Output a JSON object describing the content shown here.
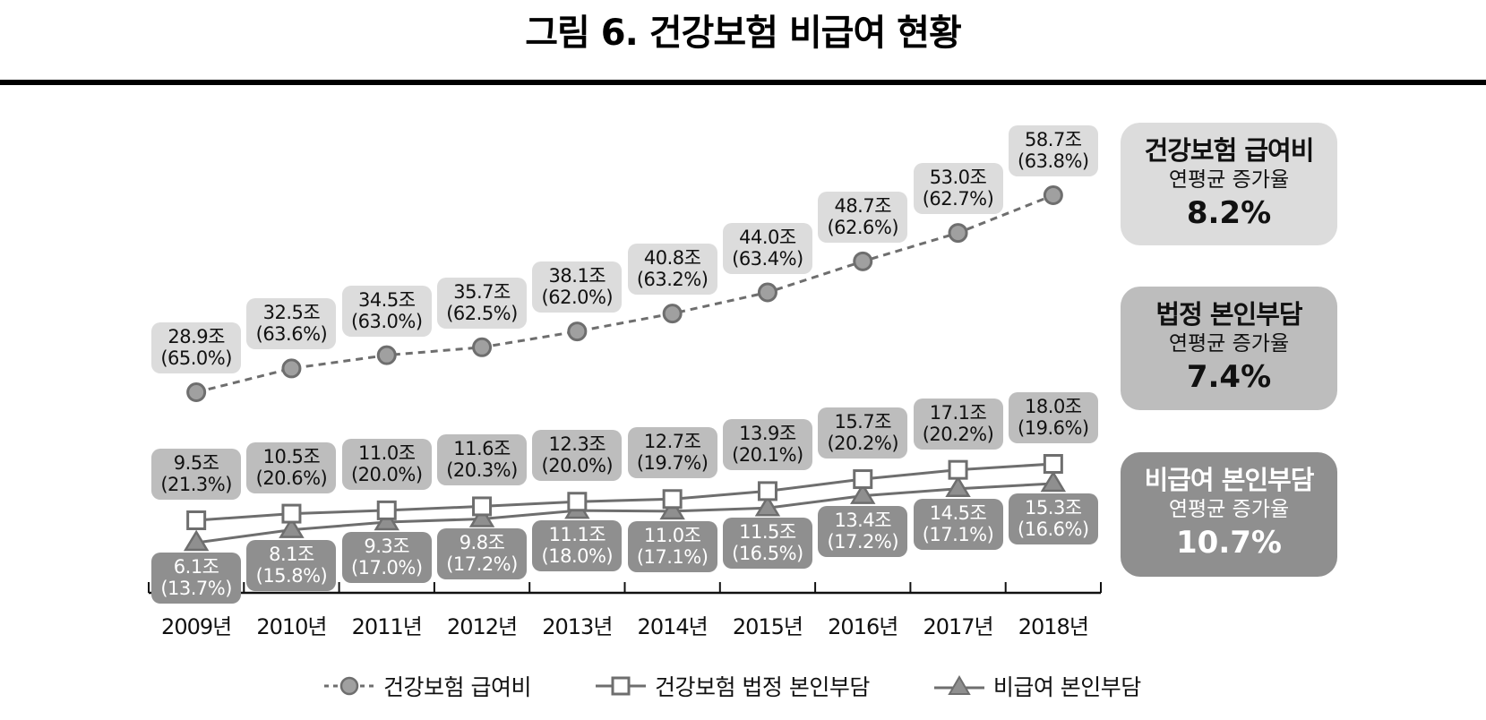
{
  "title": "그림 6. 건강보험 비급여 현황",
  "colors": {
    "series1_fill": "#a0a0a0",
    "series1_line": "#6e6e6e",
    "series2_line": "#6e6e6e",
    "series3_fill": "#8f8f8f",
    "label1_bg": "#dcdcdc",
    "label2_bg": "#bdbdbd",
    "label3_bg": "#8f8f8f",
    "summary1_bg": "#dcdcdc",
    "summary2_bg": "#bdbdbd",
    "summary3_bg": "#8f8f8f"
  },
  "years": [
    "2009년",
    "2010년",
    "2011년",
    "2012년",
    "2013년",
    "2014년",
    "2015년",
    "2016년",
    "2017년",
    "2018년"
  ],
  "series": [
    {
      "name": "건강보험 급여비",
      "marker": "circle",
      "line": "dashed",
      "labels": [
        {
          "value": "28.9조",
          "share": "(65.0%)"
        },
        {
          "value": "32.5조",
          "share": "(63.6%)"
        },
        {
          "value": "34.5조",
          "share": "(63.0%)"
        },
        {
          "value": "35.7조",
          "share": "(62.5%)"
        },
        {
          "value": "38.1조",
          "share": "(62.0%)"
        },
        {
          "value": "40.8조",
          "share": "(63.2%)"
        },
        {
          "value": "44.0조",
          "share": "(63.4%)"
        },
        {
          "value": "48.7조",
          "share": "(62.6%)"
        },
        {
          "value": "53.0조",
          "share": "(62.7%)"
        },
        {
          "value": "58.7조",
          "share": "(63.8%)"
        }
      ]
    },
    {
      "name": "건강보험 법정 본인부담",
      "marker": "square",
      "line": "solid",
      "labels": [
        {
          "value": "9.5조",
          "share": "(21.3%)"
        },
        {
          "value": "10.5조",
          "share": "(20.6%)"
        },
        {
          "value": "11.0조",
          "share": "(20.0%)"
        },
        {
          "value": "11.6조",
          "share": "(20.3%)"
        },
        {
          "value": "12.3조",
          "share": "(20.0%)"
        },
        {
          "value": "12.7조",
          "share": "(19.7%)"
        },
        {
          "value": "13.9조",
          "share": "(20.1%)"
        },
        {
          "value": "15.7조",
          "share": "(20.2%)"
        },
        {
          "value": "17.1조",
          "share": "(20.2%)"
        },
        {
          "value": "18.0조",
          "share": "(19.6%)"
        }
      ]
    },
    {
      "name": "비급여 본인부담",
      "marker": "triangle",
      "line": "solid",
      "labels": [
        {
          "value": "6.1조",
          "share": "(13.7%)"
        },
        {
          "value": "8.1조",
          "share": "(15.8%)"
        },
        {
          "value": "9.3조",
          "share": "(17.0%)"
        },
        {
          "value": "9.8조",
          "share": "(17.2%)"
        },
        {
          "value": "11.1조",
          "share": "(18.0%)"
        },
        {
          "value": "11.0조",
          "share": "(17.1%)"
        },
        {
          "value": "11.5조",
          "share": "(16.5%)"
        },
        {
          "value": "13.4조",
          "share": "(17.2%)"
        },
        {
          "value": "14.5조",
          "share": "(17.1%)"
        },
        {
          "value": "15.3조",
          "share": "(16.6%)"
        }
      ]
    }
  ],
  "summary": [
    {
      "heading": "건강보험 급여비",
      "sub": "연평균 증가율",
      "value": "8.2%"
    },
    {
      "heading": "법정 본인부담",
      "sub": "연평균 증가율",
      "value": "7.4%"
    },
    {
      "heading": "비급여 본인부담",
      "sub": "연평균 증가율",
      "value": "10.7%"
    }
  ],
  "legend": [
    {
      "label": "건강보험 급여비",
      "icon": "dashed-line-circle-marker-icon"
    },
    {
      "label": "건강보험 법정 본인부담",
      "icon": "line-square-marker-icon"
    },
    {
      "label": "비급여 본인부담",
      "icon": "line-triangle-marker-icon"
    }
  ],
  "chart_data": {
    "type": "line",
    "title": "그림 6. 건강보험 비급여 현황",
    "xlabel": "",
    "ylabel": "",
    "unit": "조 원 (괄호: 비중 %)",
    "categories": [
      "2009년",
      "2010년",
      "2011년",
      "2012년",
      "2013년",
      "2014년",
      "2015년",
      "2016년",
      "2017년",
      "2018년"
    ],
    "series": [
      {
        "name": "건강보험 급여비",
        "values": [
          28.9,
          32.5,
          34.5,
          35.7,
          38.1,
          40.8,
          44.0,
          48.7,
          53.0,
          58.7
        ],
        "shares": [
          65.0,
          63.6,
          63.0,
          62.5,
          62.0,
          63.2,
          63.4,
          62.6,
          62.7,
          63.8
        ],
        "marker": "circle",
        "line": "dashed"
      },
      {
        "name": "건강보험 법정 본인부담",
        "values": [
          9.5,
          10.5,
          11.0,
          11.6,
          12.3,
          12.7,
          13.9,
          15.7,
          17.1,
          18.0
        ],
        "shares": [
          21.3,
          20.6,
          20.0,
          20.3,
          20.0,
          19.7,
          20.1,
          20.2,
          20.2,
          19.6
        ],
        "marker": "square",
        "line": "solid"
      },
      {
        "name": "비급여 본인부담",
        "values": [
          6.1,
          8.1,
          9.3,
          9.8,
          11.1,
          11.0,
          11.5,
          13.4,
          14.5,
          15.3
        ],
        "shares": [
          13.7,
          15.8,
          17.0,
          17.2,
          18.0,
          17.1,
          16.5,
          17.2,
          17.1,
          16.6
        ],
        "marker": "triangle",
        "line": "solid"
      }
    ],
    "annotations": [
      {
        "text": "건강보험 급여비 연평균 증가율 8.2%"
      },
      {
        "text": "법정 본인부담 연평균 증가율 7.4%"
      },
      {
        "text": "비급여 본인부담 연평균 증가율 10.7%"
      }
    ],
    "grid": false,
    "legend_position": "bottom",
    "y_axis_visible": false
  }
}
